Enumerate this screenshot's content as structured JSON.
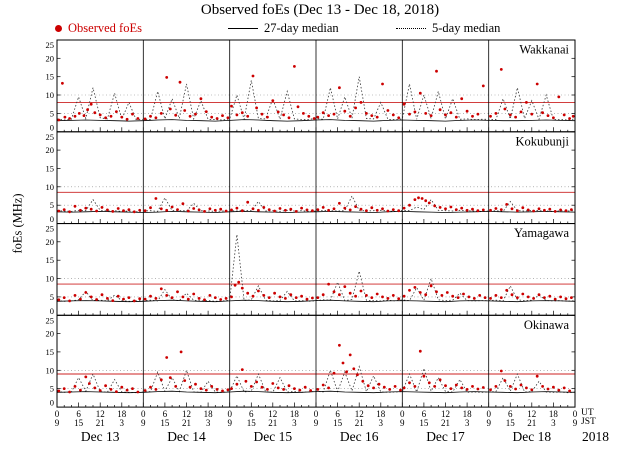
{
  "title": "Observed foEs (Dec 13 - Dec 18, 2018)",
  "legend": {
    "observed": "Observed foEs",
    "median27": "27-day median",
    "median5": "5-day median"
  },
  "colors": {
    "observed": "#cc0000",
    "median27": "#000000",
    "median5": "#333333",
    "threshold": "#cc2222",
    "grid": "#888888"
  },
  "axis": {
    "ylabel": "foEs (MHz)",
    "ymax": 25,
    "yticks": [
      5,
      10,
      15,
      20,
      25
    ],
    "yzero": "0",
    "hours": 144,
    "major_step": 6,
    "day_step": 24,
    "ut_label": "UT",
    "jst_label": "JST",
    "year": "2018",
    "dates": [
      "Dec 13",
      "Dec 14",
      "Dec 15",
      "Dec 16",
      "Dec 17",
      "Dec 18"
    ],
    "ut_ticks": [
      0,
      6,
      12,
      18,
      0,
      6,
      12,
      18,
      0,
      6,
      12,
      18,
      0,
      6,
      12,
      18,
      0,
      6,
      12,
      18,
      0,
      6,
      12,
      18,
      0
    ],
    "jst_ticks": [
      9,
      15,
      21,
      3,
      9,
      15,
      21,
      3,
      9,
      15,
      21,
      3,
      9,
      15,
      21,
      3,
      9,
      15,
      21,
      3,
      9,
      15,
      21,
      3,
      9
    ]
  },
  "chart_data": [
    {
      "type": "scatter-line",
      "title": "Wakkanai",
      "ylim": [
        0,
        25
      ],
      "threshold": 8.0,
      "median27": {
        "x_step": 4,
        "values": [
          3.0,
          3.1,
          3.2,
          3.1,
          3.0,
          2.9,
          3.0,
          3.2,
          3.3,
          3.1,
          3.0,
          2.9,
          3.1,
          3.3,
          3.2,
          3.0,
          2.9,
          3.0,
          3.2,
          3.3,
          3.1,
          3.0,
          2.9,
          3.1,
          3.2,
          3.1,
          3.0,
          2.9,
          3.1,
          3.2,
          3.1,
          3.0,
          3.0,
          3.1,
          3.2,
          3.1,
          3.0
        ]
      },
      "median5": {
        "x_step": 2,
        "values": [
          3.5,
          3.2,
          3.4,
          9.5,
          3.6,
          12.0,
          3.8,
          3.5,
          10.5,
          3.4,
          8.0,
          3.3,
          3.4,
          3.3,
          11.0,
          3.5,
          9.0,
          3.6,
          13.0,
          3.5,
          8.5,
          3.4,
          3.3,
          3.2,
          3.5,
          10.0,
          3.4,
          14.0,
          3.6,
          3.5,
          9.0,
          3.4,
          11.0,
          3.5,
          3.3,
          3.4,
          3.6,
          3.4,
          12.0,
          3.5,
          9.5,
          3.7,
          15.0,
          3.6,
          3.5,
          8.0,
          3.4,
          3.3,
          3.5,
          13.0,
          3.4,
          10.0,
          3.6,
          11.0,
          3.5,
          9.0,
          3.4,
          3.5,
          3.3,
          3.4,
          3.4,
          3.3,
          9.0,
          3.5,
          12.0,
          3.6,
          8.5,
          3.4,
          10.0,
          3.3,
          3.4,
          3.2,
          3.5
        ]
      },
      "observed": [
        0.5,
        3.2,
        1.5,
        13.2,
        2.2,
        4.0,
        3.5,
        3.6,
        5,
        4.2,
        6.2,
        5.0,
        7.5,
        4.4,
        8.5,
        6.0,
        9.5,
        7.5,
        10.5,
        5.2,
        12,
        4.6,
        13.5,
        3.8,
        15,
        4.2,
        16.5,
        5.5,
        18,
        4.0,
        19.5,
        3.4,
        21,
        4.8,
        22.5,
        3.6,
        24.5,
        3.5,
        26,
        4.2,
        27.5,
        3.8,
        29,
        5.0,
        30.5,
        14.8,
        31.5,
        6.2,
        33,
        4.5,
        34.2,
        13.5,
        35.5,
        5.8,
        37,
        4.2,
        38.5,
        4.8,
        40,
        9.0,
        41.5,
        5.5,
        43,
        4.0,
        44.5,
        3.6,
        46,
        4.4,
        47.5,
        3.8,
        48.5,
        7.0,
        50,
        4.6,
        51.5,
        5.2,
        53,
        4.2,
        54.5,
        15.2,
        55.5,
        6.5,
        57,
        4.8,
        58.5,
        4.0,
        60,
        8.5,
        61.5,
        5.4,
        63,
        4.6,
        64.5,
        3.8,
        66,
        17.8,
        67,
        6.8,
        68.5,
        5.0,
        70,
        4.2,
        71.5,
        3.6,
        72.5,
        4.0,
        74,
        5.2,
        75.5,
        4.4,
        77,
        4.8,
        78.5,
        12.0,
        80,
        5.6,
        81.5,
        4.2,
        83,
        6.5,
        84.5,
        8.0,
        86,
        5.0,
        87.5,
        4.4,
        89,
        4.0,
        90.5,
        13.0,
        92,
        5.8,
        93.5,
        4.6,
        95,
        3.8,
        96.5,
        7.5,
        98,
        4.8,
        99.5,
        5.4,
        101,
        10.5,
        102.5,
        5.0,
        104,
        4.4,
        105.5,
        16.5,
        106.5,
        6.0,
        108,
        4.6,
        109.5,
        5.2,
        111,
        4.0,
        112.5,
        9.0,
        114,
        5.6,
        115.5,
        4.2,
        117,
        4.8,
        118.5,
        12.5,
        120.5,
        4.2,
        122,
        5.0,
        123.5,
        17.0,
        124.5,
        6.2,
        126,
        4.6,
        127.5,
        4.0,
        129,
        5.4,
        130.5,
        8.0,
        132,
        4.8,
        133.5,
        13.0,
        135,
        5.2,
        136.5,
        4.4,
        138,
        3.8,
        139.5,
        9.5,
        141,
        4.6,
        142.5,
        3.6,
        143.5,
        4.2
      ]
    },
    {
      "type": "scatter-line",
      "title": "Kokubunji",
      "ylim": [
        0,
        25
      ],
      "threshold": 8.5,
      "median27": {
        "x_step": 4,
        "values": [
          3.2,
          3.1,
          3.2,
          3.3,
          3.2,
          3.1,
          3.0,
          3.1,
          3.3,
          3.2,
          3.1,
          3.0,
          3.2,
          3.3,
          3.2,
          3.1,
          3.0,
          3.1,
          3.2,
          3.3,
          3.2,
          3.1,
          3.0,
          3.2,
          3.3,
          3.2,
          3.1,
          3.0,
          3.1,
          3.2,
          3.3,
          3.2,
          3.1,
          3.2,
          3.3,
          3.2,
          3.1
        ]
      },
      "median5": {
        "x_step": 2,
        "values": [
          3.5,
          3.4,
          3.3,
          3.6,
          3.5,
          6.5,
          3.6,
          3.4,
          3.5,
          3.3,
          3.4,
          3.2,
          3.4,
          3.5,
          3.3,
          7.0,
          3.5,
          3.6,
          3.4,
          5.5,
          3.5,
          3.4,
          3.3,
          3.4,
          3.5,
          3.4,
          3.6,
          3.5,
          6.0,
          3.4,
          3.5,
          3.3,
          3.6,
          3.4,
          3.5,
          3.3,
          3.4,
          3.6,
          3.5,
          3.4,
          3.5,
          7.5,
          3.6,
          3.4,
          3.5,
          3.6,
          3.4,
          3.3,
          3.6,
          3.5,
          4.5,
          3.8,
          6.5,
          3.6,
          3.5,
          3.4,
          3.6,
          3.5,
          3.4,
          3.3,
          3.4,
          3.5,
          3.3,
          6.0,
          3.5,
          3.4,
          3.6,
          3.5,
          3.4,
          3.3,
          3.5,
          3.4,
          3.5
        ]
      },
      "observed": [
        0.5,
        3.4,
        2,
        3.8,
        3.5,
        3.2,
        5,
        4.7,
        6.5,
        3.6,
        8,
        4.2,
        9.5,
        3.9,
        11,
        3.4,
        12.5,
        4.4,
        14,
        3.7,
        15.5,
        3.3,
        17,
        4.1,
        18.5,
        3.5,
        20,
        3.8,
        21.5,
        3.2,
        23,
        3.6,
        24.5,
        3.5,
        26,
        4.3,
        27.5,
        6.8,
        29,
        4.0,
        30.5,
        3.6,
        32,
        4.5,
        33.5,
        3.8,
        35,
        5.4,
        36.5,
        3.4,
        38,
        4.1,
        39.5,
        3.7,
        41,
        3.3,
        42.5,
        4.0,
        44,
        3.6,
        45.5,
        3.9,
        47,
        3.4,
        48.5,
        3.7,
        50,
        4.2,
        51.5,
        3.5,
        53,
        5.8,
        54.5,
        4.0,
        56,
        3.6,
        57.5,
        4.4,
        59,
        3.8,
        60.5,
        3.4,
        62,
        4.1,
        63.5,
        3.6,
        65,
        3.9,
        66.5,
        3.3,
        68,
        4.2,
        69.5,
        3.7,
        71,
        3.5,
        72.5,
        3.8,
        74,
        4.4,
        75.5,
        3.6,
        77,
        4.0,
        78.5,
        5.5,
        80,
        4.2,
        81.5,
        3.7,
        83,
        4.6,
        84.5,
        3.9,
        86,
        3.5,
        87.5,
        4.3,
        89,
        3.6,
        90.5,
        4.0,
        92,
        3.4,
        93.5,
        3.8,
        95,
        3.5,
        96.5,
        4.2,
        98,
        5.0,
        99.5,
        6.5,
        100.5,
        7.0,
        101.5,
        6.8,
        102.5,
        6.2,
        103.5,
        5.6,
        105,
        4.8,
        106.5,
        4.4,
        108,
        4.0,
        109.5,
        4.5,
        111,
        3.8,
        112.5,
        4.2,
        114,
        3.6,
        115.5,
        3.9,
        117,
        3.5,
        118.5,
        3.7,
        120.5,
        3.6,
        122,
        4.1,
        123.5,
        3.8,
        125,
        5.2,
        126.5,
        4.0,
        128,
        3.5,
        129.5,
        4.3,
        131,
        3.7,
        132.5,
        3.4,
        134,
        4.0,
        135.5,
        3.6,
        137,
        3.9,
        138.5,
        3.3,
        140,
        3.7,
        141.5,
        3.5,
        143,
        3.8
      ]
    },
    {
      "type": "scatter-line",
      "title": "Yamagawa",
      "ylim": [
        0,
        25
      ],
      "threshold": 8.5,
      "median27": {
        "x_step": 4,
        "values": [
          3.8,
          3.9,
          4.0,
          3.9,
          3.8,
          3.7,
          3.8,
          4.0,
          4.1,
          3.9,
          3.8,
          3.7,
          3.9,
          4.1,
          4.0,
          3.8,
          3.7,
          3.8,
          4.0,
          4.1,
          3.9,
          3.8,
          3.7,
          3.9,
          4.0,
          3.9,
          3.8,
          3.7,
          3.9,
          4.0,
          3.9,
          3.8,
          3.7,
          3.9,
          4.0,
          3.9,
          3.8
        ]
      },
      "median5": {
        "x_step": 2,
        "values": [
          4.0,
          3.8,
          3.9,
          4.2,
          6.5,
          4.0,
          4.1,
          3.9,
          5.5,
          4.0,
          3.8,
          3.9,
          4.0,
          4.1,
          3.9,
          7.0,
          4.2,
          4.0,
          6.0,
          4.1,
          3.9,
          4.0,
          3.8,
          3.9,
          4.1,
          22.0,
          4.0,
          4.2,
          8.0,
          4.1,
          3.9,
          4.0,
          6.5,
          3.9,
          4.0,
          3.8,
          4.0,
          4.2,
          4.1,
          9.0,
          4.0,
          4.3,
          12.0,
          4.1,
          4.0,
          3.9,
          4.1,
          3.9,
          4.2,
          4.0,
          7.5,
          4.1,
          10.0,
          4.2,
          4.0,
          4.1,
          6.0,
          4.0,
          3.9,
          4.0,
          4.0,
          4.1,
          3.9,
          8.0,
          4.2,
          4.0,
          4.1,
          5.5,
          4.0,
          3.9,
          4.0,
          3.8,
          4.0
        ]
      },
      "observed": [
        0.5,
        4.2,
        2,
        4.8,
        3.5,
        3.9,
        5,
        5.4,
        6.5,
        4.4,
        8,
        6.2,
        9.5,
        5.0,
        11,
        4.3,
        12.5,
        5.6,
        14,
        4.6,
        15.5,
        4.0,
        17,
        5.2,
        18.5,
        4.4,
        20,
        4.8,
        21.5,
        3.9,
        23,
        4.5,
        24.5,
        4.4,
        26,
        5.2,
        27.5,
        4.6,
        29,
        7.2,
        30.5,
        5.4,
        32,
        4.8,
        33.5,
        6.4,
        35,
        5.0,
        36.5,
        4.4,
        38,
        5.8,
        39.5,
        4.6,
        41,
        4.2,
        42.5,
        5.4,
        44,
        4.8,
        45.5,
        4.3,
        47,
        4.6,
        48.5,
        5.0,
        49.5,
        8.2,
        50.5,
        9.0,
        51.5,
        7.4,
        53,
        6.0,
        54.5,
        5.2,
        56,
        6.6,
        57.5,
        5.4,
        59,
        4.8,
        60.5,
        6.0,
        62,
        5.0,
        63.5,
        4.6,
        65,
        5.6,
        66.5,
        4.8,
        68,
        5.2,
        69.5,
        4.4,
        71,
        4.7,
        72.5,
        4.8,
        74,
        5.6,
        75.5,
        8.5,
        77,
        6.4,
        78.5,
        5.6,
        80,
        7.8,
        81.5,
        6.0,
        83,
        5.2,
        84.5,
        6.6,
        86,
        5.4,
        87.5,
        4.8,
        89,
        5.8,
        90.5,
        5.0,
        92,
        4.6,
        93.5,
        5.4,
        95,
        4.5,
        96.5,
        5.2,
        98,
        6.8,
        99.5,
        7.6,
        101,
        6.2,
        102.5,
        5.6,
        104,
        8.0,
        105.5,
        6.4,
        107,
        5.4,
        108.5,
        6.2,
        110,
        5.2,
        111.5,
        4.8,
        113,
        5.8,
        114.5,
        5.0,
        116,
        4.6,
        117.5,
        5.4,
        119,
        4.8,
        120.5,
        4.6,
        122,
        5.4,
        123.5,
        4.8,
        125,
        6.8,
        126.5,
        5.6,
        128,
        4.8,
        129.5,
        5.8,
        131,
        5.0,
        132.5,
        4.6,
        134,
        5.6,
        135.5,
        4.8,
        137,
        5.2,
        138.5,
        4.4,
        140,
        5.0,
        141.5,
        4.5,
        143,
        4.8
      ]
    },
    {
      "type": "scatter-line",
      "title": "Okinawa",
      "ylim": [
        0,
        25
      ],
      "threshold": 9.0,
      "median27": {
        "x_step": 4,
        "values": [
          4.0,
          4.1,
          4.2,
          4.1,
          4.0,
          3.9,
          4.0,
          4.2,
          4.3,
          4.1,
          4.0,
          3.9,
          4.1,
          4.3,
          4.2,
          4.0,
          3.9,
          4.0,
          4.2,
          4.3,
          4.1,
          4.0,
          3.9,
          4.1,
          4.2,
          4.1,
          4.0,
          3.9,
          4.1,
          4.2,
          4.1,
          4.0,
          3.9,
          4.1,
          4.2,
          4.1,
          4.0
        ]
      },
      "median5": {
        "x_step": 2,
        "values": [
          4.2,
          4.0,
          4.1,
          8.0,
          4.3,
          9.0,
          4.2,
          4.0,
          7.5,
          4.1,
          4.0,
          3.9,
          4.1,
          4.2,
          9.5,
          4.3,
          8.0,
          4.2,
          10.0,
          4.1,
          4.0,
          7.0,
          4.1,
          4.0,
          4.2,
          8.5,
          4.1,
          4.3,
          9.0,
          4.2,
          4.0,
          8.0,
          4.1,
          4.2,
          4.0,
          4.1,
          4.3,
          4.1,
          10.0,
          4.2,
          9.5,
          4.4,
          11.0,
          4.2,
          8.5,
          4.1,
          4.0,
          4.1,
          4.2,
          9.0,
          4.1,
          10.5,
          4.3,
          8.0,
          4.2,
          4.1,
          7.5,
          4.0,
          4.1,
          4.0,
          4.1,
          4.2,
          8.0,
          4.3,
          9.0,
          4.1,
          4.2,
          7.0,
          4.1,
          4.0,
          4.1,
          3.9,
          4.1
        ]
      },
      "observed": [
        0.5,
        4.4,
        2,
        5.0,
        3.5,
        4.1,
        5,
        5.6,
        6.5,
        4.6,
        8,
        8.2,
        9,
        6.4,
        10.5,
        5.2,
        12,
        4.5,
        13.5,
        5.8,
        15,
        4.8,
        16.5,
        4.2,
        18,
        5.4,
        19.5,
        4.6,
        21,
        5.0,
        22.5,
        4.1,
        24.5,
        4.5,
        26,
        5.4,
        27.5,
        4.8,
        29,
        7.4,
        30.5,
        13.5,
        31.5,
        8.0,
        33,
        5.6,
        34.5,
        15.0,
        35.5,
        7.2,
        37,
        5.4,
        38.5,
        6.2,
        40,
        5.0,
        41.5,
        4.6,
        43,
        5.6,
        44.5,
        4.8,
        46,
        4.4,
        47.5,
        4.7,
        48.5,
        5.0,
        50,
        6.2,
        51.5,
        10.2,
        52.5,
        7.0,
        54,
        5.6,
        55.5,
        6.8,
        57,
        5.4,
        58.5,
        4.8,
        60,
        6.4,
        61.5,
        5.2,
        63,
        4.8,
        64.5,
        5.8,
        66,
        5.0,
        67.5,
        4.6,
        69,
        5.4,
        70.5,
        4.5,
        72.5,
        4.8,
        74,
        6.0,
        75.5,
        5.2,
        77,
        9.2,
        78.5,
        16.8,
        79.5,
        12.0,
        80.5,
        9.6,
        81.5,
        14.2,
        82.5,
        10.4,
        83.5,
        8.8,
        85,
        7.0,
        86.5,
        5.8,
        88,
        5.2,
        89.5,
        6.2,
        91,
        5.4,
        92.5,
        4.8,
        94,
        5.6,
        95.5,
        4.6,
        96.5,
        5.2,
        98,
        6.6,
        99.5,
        5.6,
        101,
        15.2,
        102,
        8.4,
        103.5,
        6.6,
        105,
        5.6,
        106.5,
        7.4,
        108,
        5.8,
        109.5,
        5.0,
        111,
        6.0,
        112.5,
        5.2,
        114,
        4.8,
        115.5,
        5.6,
        117,
        4.9,
        118.5,
        5.3,
        120.5,
        4.7,
        122,
        5.6,
        123.5,
        9.8,
        124.5,
        7.2,
        126,
        5.6,
        127.5,
        4.9,
        129,
        6.0,
        130.5,
        5.2,
        132,
        4.7,
        133.5,
        8.4,
        135,
        5.6,
        136.5,
        4.9,
        138,
        5.4,
        139.5,
        4.6,
        141,
        5.2,
        142.5,
        4.4
      ]
    }
  ]
}
